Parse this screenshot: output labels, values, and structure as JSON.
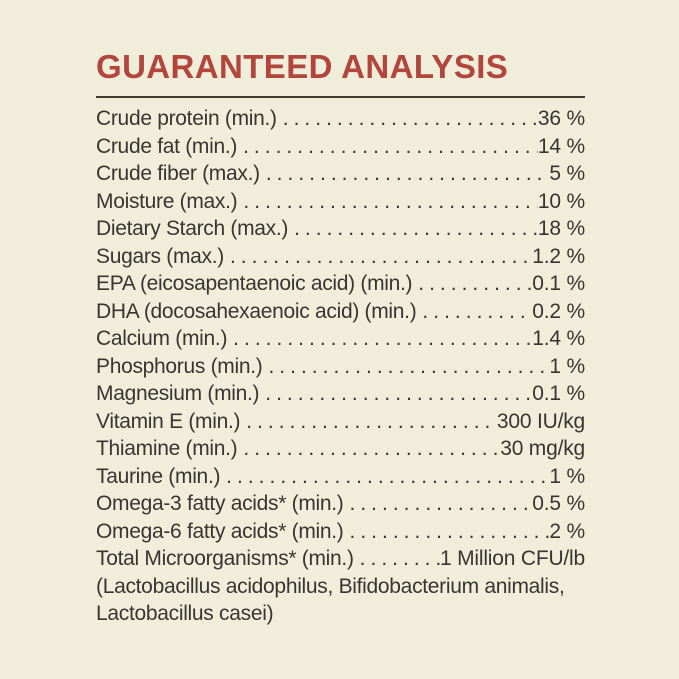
{
  "label": {
    "title": "GUARANTEED ANALYSIS",
    "rows": [
      {
        "label": "Crude protein (min.)",
        "value": "36 %"
      },
      {
        "label": "Crude fat (min.)",
        "value": "14 %"
      },
      {
        "label": "Crude fiber (max.)",
        "value": "5 %"
      },
      {
        "label": "Moisture (max.)",
        "value": "10 %"
      },
      {
        "label": "Dietary Starch (max.)",
        "value": "18 %"
      },
      {
        "label": "Sugars (max.)",
        "value": "1.2 %"
      },
      {
        "label": "EPA (eicosapentaenoic acid) (min.)",
        "value": "0.1 %"
      },
      {
        "label": "DHA (docosahexaenoic acid) (min.)",
        "value": "0.2 %"
      },
      {
        "label": "Calcium (min.)",
        "value": "1.4 %"
      },
      {
        "label": "Phosphorus (min.)",
        "value": "1 %"
      },
      {
        "label": "Magnesium (min.)",
        "value": "0.1 %"
      },
      {
        "label": "Vitamin E (min.)",
        "value": "300 IU/kg"
      },
      {
        "label": "Thiamine (min.)",
        "value": "30 mg/kg"
      },
      {
        "label": "Taurine (min.)",
        "value": "1 %"
      },
      {
        "label": "Omega-3 fatty acids* (min.)",
        "value": "0.5 %"
      },
      {
        "label": "Omega-6 fatty acids* (min.)",
        "value": "2 %"
      },
      {
        "label": "Total Microorganisms* (min.)",
        "value": "1 Million CFU/lb"
      }
    ],
    "microorganisms_note": "(Lactobacillus acidophilus, Bifidobacterium animalis, Lactobacillus casei)",
    "colors": {
      "background": "#f0eedb",
      "title": "#b2453c",
      "text": "#373530",
      "rule": "#3e3c31"
    }
  }
}
